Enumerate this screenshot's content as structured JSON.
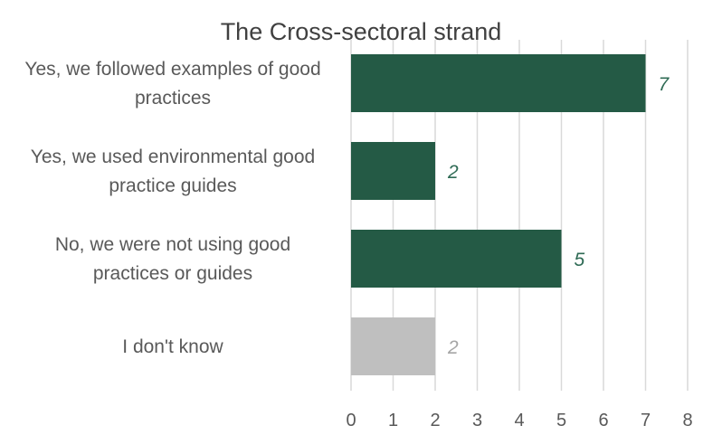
{
  "chart_data": {
    "type": "bar",
    "orientation": "horizontal",
    "title": "The Cross-sectoral strand",
    "categories": [
      [
        "Yes, we followed examples of good",
        "practices"
      ],
      [
        "Yes, we used environmental good",
        "practice guides"
      ],
      [
        "No, we were not using good",
        "practices or guides"
      ],
      [
        "I don't know"
      ]
    ],
    "values": [
      7,
      2,
      5,
      2
    ],
    "bar_colors": [
      "#245a45",
      "#245a45",
      "#245a45",
      "#bfbfbf"
    ],
    "label_colors": [
      "#2f6b55",
      "#2f6b55",
      "#2f6b55",
      "#a6a6a6"
    ],
    "xlim": [
      0,
      8
    ],
    "xticks": [
      "0",
      "1",
      "2",
      "3",
      "4",
      "5",
      "6",
      "7",
      "8"
    ],
    "xlabel": "",
    "ylabel": "",
    "grid": "vertical",
    "legend": "none"
  }
}
